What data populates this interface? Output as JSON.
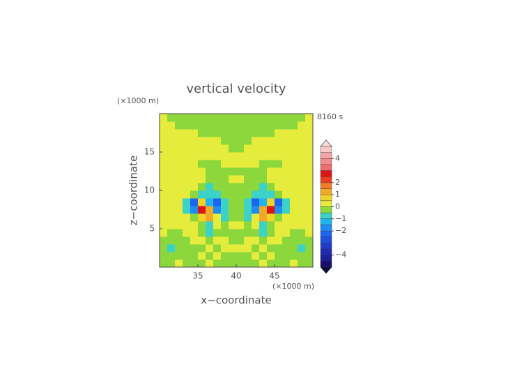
{
  "chart_data": {
    "type": "contour",
    "title": "vertical velocity",
    "xlabel": "x−coordinate",
    "ylabel": "z−coordinate",
    "xunit": "(×1000 m)",
    "yunit": "(×1000 m)",
    "time": "8160 s",
    "xlim": [
      30,
      50
    ],
    "ylim": [
      0,
      20
    ],
    "xticks": [
      35,
      40,
      45
    ],
    "yticks": [
      5,
      10,
      15
    ],
    "x": [
      30.5,
      31.5,
      32.5,
      33.5,
      34.5,
      35.5,
      36.5,
      37.5,
      38.5,
      39.5,
      40.5,
      41.5,
      42.5,
      43.5,
      44.5,
      45.5,
      46.5,
      47.5,
      48.5,
      49.5
    ],
    "y": [
      0.5,
      1.5,
      2.5,
      3.5,
      4.5,
      5.5,
      6.5,
      7.5,
      8.5,
      9.5,
      10.5,
      11.5,
      12.5,
      13.5,
      14.5,
      15.5,
      16.5,
      17.5,
      18.5,
      19.5
    ],
    "z": [
      [
        -0.2,
        -0.2,
        0.2,
        -0.2,
        -0.2,
        -0.2,
        0.2,
        -0.2,
        -0.2,
        -0.2,
        -0.2,
        -0.2,
        -0.2,
        0.2,
        -0.2,
        -0.2,
        -0.2,
        0.2,
        -0.2,
        -0.2
      ],
      [
        -0.2,
        -0.2,
        -0.2,
        -0.2,
        -0.2,
        0.2,
        -0.2,
        0.2,
        -0.2,
        -0.2,
        -0.2,
        -0.2,
        0.2,
        -0.2,
        0.2,
        -0.2,
        -0.2,
        -0.2,
        -0.2,
        -0.2
      ],
      [
        -0.2,
        -0.7,
        -0.2,
        -0.2,
        -0.2,
        -0.2,
        0.2,
        -0.2,
        0.2,
        0.2,
        0.2,
        0.2,
        -0.2,
        0.2,
        -0.2,
        -0.2,
        -0.2,
        -0.2,
        -0.7,
        -0.2
      ],
      [
        -0.2,
        -0.2,
        -0.2,
        -0.2,
        0.2,
        0.2,
        -0.2,
        0.2,
        0.2,
        -0.2,
        -0.2,
        0.2,
        0.2,
        -0.2,
        0.2,
        0.2,
        -0.2,
        -0.2,
        -0.2,
        -0.2
      ],
      [
        0.2,
        -0.2,
        -0.2,
        0.2,
        0.2,
        -0.2,
        -0.7,
        -0.2,
        -0.2,
        -0.2,
        -0.2,
        -0.2,
        -0.2,
        -0.7,
        -0.2,
        0.2,
        0.2,
        -0.2,
        -0.2,
        0.2
      ],
      [
        0.2,
        0.2,
        0.2,
        0.2,
        0.2,
        -0.2,
        -0.7,
        0.2,
        -0.2,
        0.2,
        0.2,
        -0.2,
        0.2,
        -0.7,
        -0.2,
        0.2,
        0.2,
        0.2,
        0.2,
        0.2
      ],
      [
        0.2,
        0.2,
        0.2,
        0.2,
        -0.2,
        0.7,
        1.2,
        0.2,
        -0.7,
        -0.2,
        -0.2,
        -0.7,
        0.2,
        1.2,
        0.7,
        -0.2,
        0.2,
        0.2,
        0.2,
        0.2
      ],
      [
        0.2,
        0.2,
        0.2,
        -0.7,
        -1.7,
        2.7,
        1.2,
        -1.7,
        -0.7,
        -0.2,
        -0.2,
        -0.7,
        -1.7,
        1.2,
        2.7,
        -1.7,
        -0.7,
        0.2,
        0.2,
        0.2
      ],
      [
        0.2,
        0.2,
        0.2,
        -0.7,
        -2.2,
        0.7,
        -1.2,
        -2.2,
        -0.7,
        -0.2,
        -0.2,
        -0.7,
        -2.2,
        -1.2,
        0.7,
        -2.2,
        -0.7,
        0.2,
        0.2,
        0.2
      ],
      [
        0.2,
        0.2,
        0.2,
        0.2,
        -0.2,
        -0.7,
        -0.7,
        -0.7,
        -0.2,
        -0.2,
        -0.2,
        -0.2,
        -0.7,
        -0.7,
        -0.7,
        -0.2,
        0.2,
        0.2,
        0.2,
        0.2
      ],
      [
        0.2,
        0.2,
        0.2,
        0.2,
        0.2,
        -0.2,
        -0.7,
        -0.2,
        -0.2,
        -0.2,
        -0.2,
        -0.2,
        -0.2,
        -0.7,
        -0.2,
        0.2,
        0.2,
        0.2,
        0.2,
        0.2
      ],
      [
        0.2,
        0.2,
        0.2,
        0.2,
        0.2,
        0.2,
        -0.2,
        -0.2,
        -0.2,
        0.2,
        0.2,
        -0.2,
        -0.2,
        -0.2,
        0.2,
        0.2,
        0.2,
        0.2,
        0.2,
        0.2
      ],
      [
        0.2,
        0.2,
        0.2,
        0.2,
        0.2,
        0.2,
        -0.2,
        -0.2,
        -0.2,
        -0.2,
        -0.2,
        -0.2,
        -0.2,
        -0.2,
        0.2,
        0.2,
        0.2,
        0.2,
        0.2,
        0.2
      ],
      [
        0.2,
        0.2,
        0.2,
        0.2,
        0.2,
        -0.2,
        -0.2,
        -0.2,
        0.2,
        0.2,
        0.2,
        0.2,
        0.2,
        -0.2,
        -0.2,
        -0.2,
        0.2,
        0.2,
        0.2,
        0.2
      ],
      [
        0.2,
        0.2,
        0.2,
        0.2,
        0.2,
        0.2,
        0.2,
        0.2,
        0.2,
        0.2,
        0.2,
        0.2,
        0.2,
        0.2,
        0.2,
        0.2,
        0.2,
        0.2,
        0.2,
        0.2
      ],
      [
        0.2,
        0.2,
        0.2,
        0.2,
        0.2,
        0.2,
        0.2,
        0.2,
        0.2,
        -0.2,
        -0.2,
        0.2,
        0.2,
        0.2,
        0.2,
        0.2,
        0.2,
        0.2,
        0.2,
        0.2
      ],
      [
        0.2,
        0.2,
        0.2,
        0.2,
        0.2,
        0.2,
        0.2,
        0.2,
        -0.2,
        -0.2,
        -0.2,
        -0.2,
        0.2,
        0.2,
        0.2,
        0.2,
        0.2,
        0.2,
        0.2,
        0.2
      ],
      [
        0.2,
        0.2,
        0.2,
        0.2,
        0.2,
        -0.2,
        -0.2,
        -0.2,
        -0.2,
        -0.2,
        -0.2,
        -0.2,
        -0.2,
        -0.2,
        -0.2,
        0.2,
        0.2,
        0.2,
        0.2,
        0.2
      ],
      [
        0.2,
        0.2,
        -0.2,
        -0.2,
        -0.2,
        -0.2,
        -0.2,
        -0.2,
        -0.2,
        -0.2,
        -0.2,
        -0.2,
        -0.2,
        -0.2,
        -0.2,
        -0.2,
        -0.2,
        -0.2,
        0.2,
        0.2
      ],
      [
        0.2,
        -0.2,
        -0.2,
        -0.2,
        -0.2,
        -0.2,
        -0.2,
        -0.2,
        -0.2,
        -0.2,
        -0.2,
        -0.2,
        -0.2,
        -0.2,
        -0.2,
        -0.2,
        -0.2,
        -0.2,
        -0.2,
        0.2
      ]
    ],
    "colorbar": {
      "levels": [
        -5,
        -4.5,
        -4,
        -3.5,
        -3,
        -2.5,
        -2,
        -1.5,
        -1,
        -0.5,
        0,
        0.5,
        1,
        1.5,
        2,
        2.5,
        3,
        3.5,
        4,
        4.5,
        5
      ],
      "colors": [
        "#1a0a6e",
        "#1e1e96",
        "#1e28b4",
        "#1e3cc8",
        "#1e50dc",
        "#1e64f0",
        "#1e8cf0",
        "#1eb4f0",
        "#3cd2c8",
        "#8cd83c",
        "#e6ec3c",
        "#f0d228",
        "#f0aa28",
        "#f07e28",
        "#f03c1e",
        "#dc1414",
        "#f06e6e",
        "#f08c8c",
        "#f5a5a5",
        "#fac8c8"
      ],
      "under_color": "#0a0a3c",
      "over_color": "#fcdcdc",
      "ticks": [
        {
          "value": -4,
          "label": "−4"
        },
        {
          "value": -2,
          "label": "−2"
        },
        {
          "value": -1,
          "label": "−1"
        },
        0,
        1,
        2,
        4
      ]
    }
  }
}
